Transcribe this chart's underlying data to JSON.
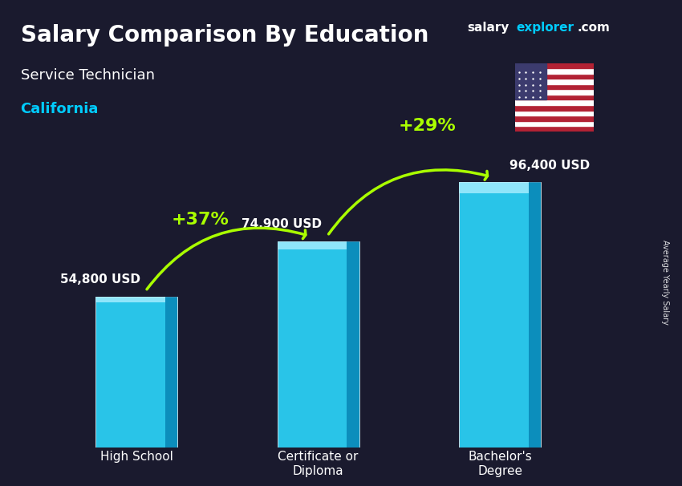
{
  "title_main": "Salary Comparison By Education",
  "title_sub": "Service Technician",
  "title_location": "California",
  "ylabel": "Average Yearly Salary",
  "categories": [
    "High School",
    "Certificate or\nDiploma",
    "Bachelor's\nDegree"
  ],
  "values": [
    54800,
    74900,
    96400
  ],
  "labels": [
    "54,800 USD",
    "74,900 USD",
    "96,400 USD"
  ],
  "pct_changes": [
    "+37%",
    "+29%"
  ],
  "bar_color_face": "#29c4e8",
  "bar_color_dark": "#0077aa",
  "bar_color_light": "#aaeeff",
  "background_color": "#1a1a2e",
  "title_color": "#ffffff",
  "subtitle_color": "#ffffff",
  "location_color": "#00ccff",
  "label_color": "#ffffff",
  "pct_color": "#aaff00",
  "arrow_color": "#aaff00",
  "ylim_max": 115000,
  "bar_width": 0.45
}
